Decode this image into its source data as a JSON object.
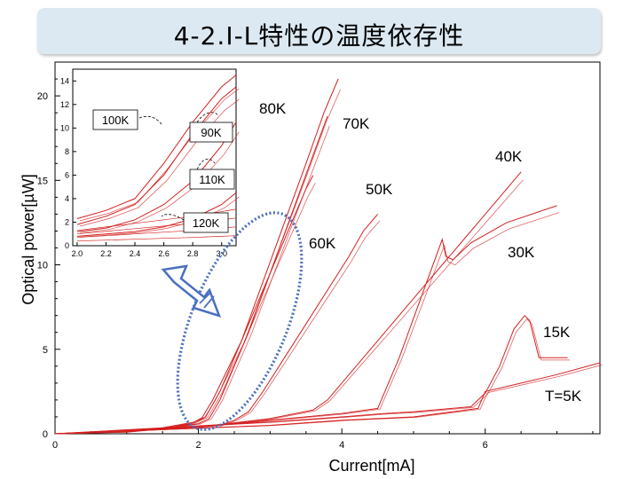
{
  "slide": {
    "title": "4-2.I-L特性の温度依存性"
  },
  "chart_data": [
    {
      "type": "line",
      "xlabel": "Current[mA]",
      "ylabel": "Optical power[µW]",
      "xlim": [
        0,
        7.6
      ],
      "ylim": [
        0,
        22
      ],
      "xticks": [
        0,
        2,
        4,
        6
      ],
      "yticks": [
        0,
        5,
        10,
        15,
        20
      ],
      "colors": {
        "curve": "#d42020",
        "ellipse": "#4a6fc0",
        "axis": "#000000"
      },
      "series": [
        {
          "name": "80K",
          "x": [
            0,
            1,
            1.5,
            1.95,
            2.1,
            2.3,
            2.6,
            2.9,
            3.2,
            3.5,
            3.75,
            3.95
          ],
          "y": [
            0,
            0.15,
            0.35,
            0.7,
            1.0,
            2.5,
            5.5,
            9.0,
            12.5,
            16.0,
            19.0,
            21.0
          ]
        },
        {
          "name": "70K",
          "x": [
            0,
            1,
            1.5,
            2.0,
            2.15,
            2.3,
            2.7,
            3.0,
            3.3,
            3.6,
            3.8
          ],
          "y": [
            0,
            0.12,
            0.3,
            0.6,
            0.9,
            2.0,
            6.0,
            9.5,
            13.0,
            16.5,
            18.8
          ]
        },
        {
          "name": "60K",
          "x": [
            0,
            1,
            1.5,
            1.9,
            2.05,
            2.2,
            2.6,
            3.0,
            3.3,
            3.5,
            3.6
          ],
          "y": [
            0,
            0.1,
            0.3,
            0.6,
            0.95,
            2.0,
            5.5,
            9.5,
            12.5,
            14.5,
            15.3
          ]
        },
        {
          "name": "50K",
          "x": [
            0,
            1.5,
            2.3,
            2.5,
            2.7,
            2.9,
            3.2,
            3.5,
            3.8,
            4.1,
            4.3,
            4.5
          ],
          "y": [
            0,
            0.25,
            0.5,
            0.8,
            1.3,
            2.5,
            4.5,
            6.5,
            8.5,
            10.5,
            12.0,
            13.0
          ]
        },
        {
          "name": "40K",
          "x": [
            0,
            2.0,
            3.0,
            3.6,
            3.8,
            4.2,
            4.6,
            5.0,
            5.4,
            5.8,
            6.2,
            6.5
          ],
          "y": [
            0,
            0.4,
            0.9,
            1.4,
            2.0,
            4.0,
            6.0,
            8.0,
            10.0,
            12.0,
            14.0,
            15.5
          ]
        },
        {
          "name": "30K",
          "x": [
            0,
            2.0,
            3.0,
            4.0,
            4.5,
            4.8,
            5.1,
            5.4,
            5.45,
            5.55,
            5.8,
            6.3,
            7.0
          ],
          "y": [
            0,
            0.4,
            0.8,
            1.2,
            1.5,
            4.5,
            8.0,
            11.5,
            10.5,
            10.3,
            11.3,
            12.5,
            13.5
          ]
        },
        {
          "name": "15K",
          "x": [
            0,
            3.0,
            4.0,
            4.6,
            5.0,
            5.8,
            6.0,
            6.2,
            6.4,
            6.55,
            6.62,
            6.75,
            7.15
          ],
          "y": [
            0,
            0.7,
            1.0,
            1.2,
            1.3,
            1.6,
            2.4,
            4.0,
            6.2,
            7.0,
            6.7,
            4.5,
            4.5
          ]
        },
        {
          "name": "T=5K",
          "x": [
            0,
            3.0,
            4.0,
            5.0,
            5.9,
            6.0,
            6.5,
            7.0,
            7.6
          ],
          "y": [
            0,
            0.5,
            0.8,
            1.0,
            1.5,
            2.5,
            3.0,
            3.5,
            4.2
          ]
        }
      ],
      "annotations": [
        "80K",
        "70K",
        "40K",
        "50K",
        "60K",
        "30K",
        "15K",
        "T=5K"
      ]
    },
    {
      "type": "line",
      "xlim": [
        1.97,
        3.1
      ],
      "ylim": [
        0,
        15
      ],
      "xticks": [
        2.0,
        2.2,
        2.4,
        2.6,
        2.8,
        3.0
      ],
      "yticks": [
        0,
        2,
        4,
        6,
        8,
        10,
        12,
        14
      ],
      "series": [
        {
          "name": "90K",
          "x": [
            2.0,
            2.2,
            2.4,
            2.6,
            2.8,
            3.0,
            3.1
          ],
          "y": [
            2.3,
            3.0,
            4.0,
            7.0,
            10.5,
            13.5,
            14.5
          ]
        },
        {
          "name": "100K",
          "x": [
            2.0,
            2.2,
            2.4,
            2.6,
            2.8,
            3.0,
            3.1
          ],
          "y": [
            1.8,
            2.5,
            3.5,
            6.0,
            9.5,
            12.5,
            13.5
          ]
        },
        {
          "name": "110K",
          "x": [
            2.0,
            2.2,
            2.4,
            2.6,
            2.8,
            3.0,
            3.1
          ],
          "y": [
            1.2,
            1.5,
            2.2,
            3.5,
            5.5,
            8.5,
            10.5
          ]
        },
        {
          "name": "120K",
          "x": [
            2.0,
            2.2,
            2.4,
            2.6,
            2.8,
            3.0,
            3.1
          ],
          "y": [
            0.8,
            1.0,
            1.2,
            1.6,
            2.3,
            3.5,
            4.5
          ]
        }
      ],
      "annotations": [
        "100K",
        "90K",
        "110K",
        "120K"
      ]
    }
  ]
}
